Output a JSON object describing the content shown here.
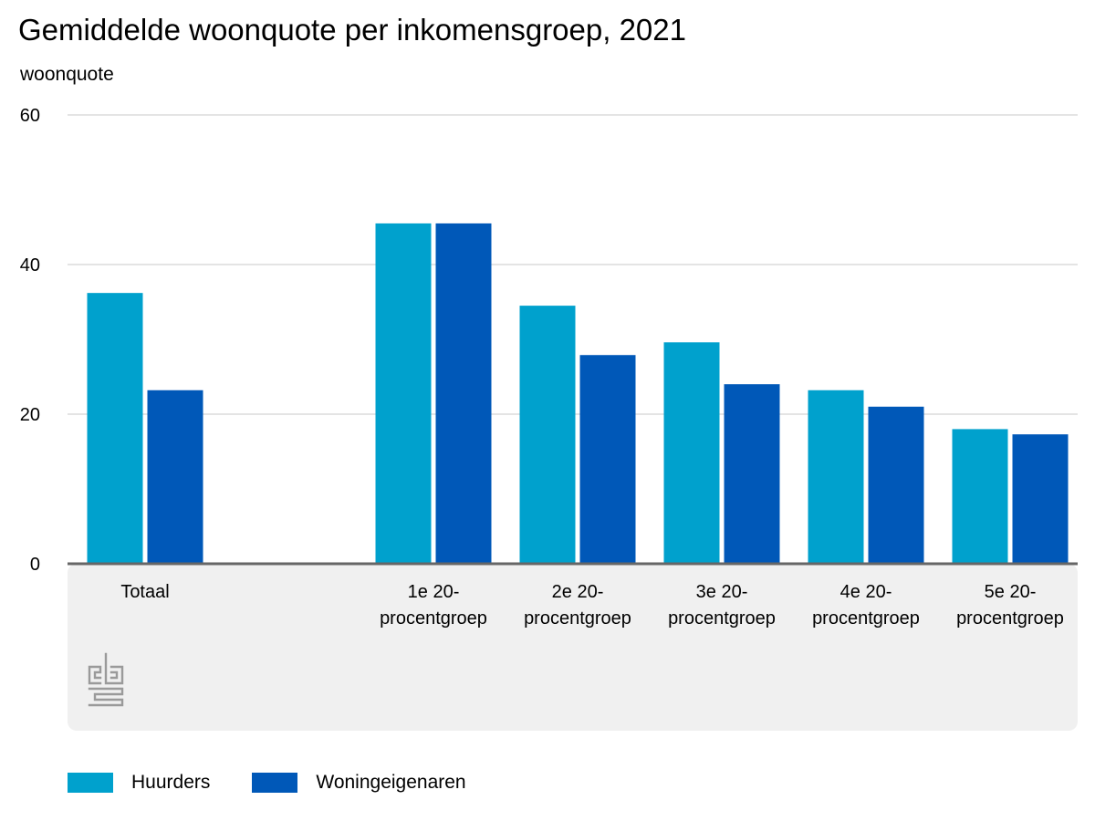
{
  "chart_data": {
    "type": "bar",
    "title": "Gemiddelde woonquote per inkomensgroep, 2021",
    "ylabel": "woonquote",
    "xlabel": "",
    "ylim": [
      0,
      60
    ],
    "yticks": [
      0,
      20,
      40,
      60
    ],
    "grid": true,
    "legend_position": "bottom-left",
    "categories": [
      [
        "Totaal"
      ],
      [],
      [
        "1e 20-",
        "procentgroep"
      ],
      [
        "2e 20-",
        "procentgroep"
      ],
      [
        "3e 20-",
        "procentgroep"
      ],
      [
        "4e 20-",
        "procentgroep"
      ],
      [
        "5e 20-",
        "procentgroep"
      ]
    ],
    "series": [
      {
        "name": "Huurders",
        "color": "#00a1cd",
        "values": [
          36.2,
          null,
          45.5,
          34.5,
          29.6,
          23.2,
          18.0
        ]
      },
      {
        "name": "Woningeigenaren",
        "color": "#0058b8",
        "values": [
          23.2,
          null,
          45.5,
          27.9,
          24.0,
          21.0,
          17.3
        ]
      }
    ]
  }
}
